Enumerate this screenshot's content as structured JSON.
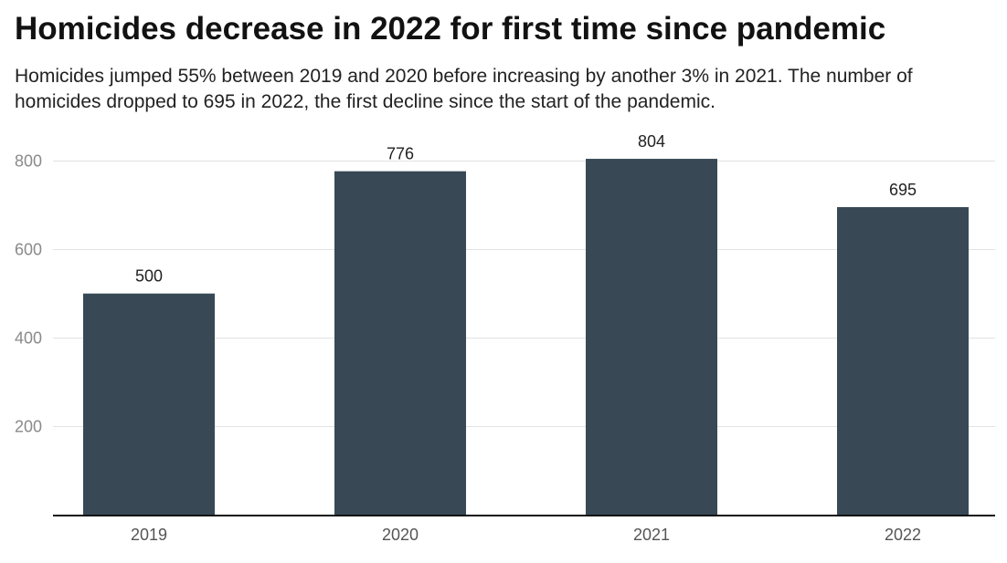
{
  "chart_data": {
    "type": "bar",
    "title": "Homicides decrease in 2022 for first time since pandemic",
    "subtitle": "Homicides jumped 55% between 2019 and 2020 before increasing by another 3% in 2021. The number of homicides dropped to 695 in 2022, the first decline since the start of the pandemic.",
    "categories": [
      "2019",
      "2020",
      "2021",
      "2022"
    ],
    "values": [
      500,
      776,
      804,
      695
    ],
    "data_labels": [
      "500",
      "776",
      "804",
      "695"
    ],
    "xlabel": "",
    "ylabel": "",
    "ylim": [
      0,
      800
    ],
    "yticks": [
      200,
      400,
      600,
      800
    ],
    "ytick_labels": [
      "200",
      "400",
      "600",
      "800"
    ],
    "grid": true,
    "legend": "none",
    "colors": {
      "bar": "#384955",
      "grid": "#e2e2e2",
      "axis": "#111111"
    }
  }
}
